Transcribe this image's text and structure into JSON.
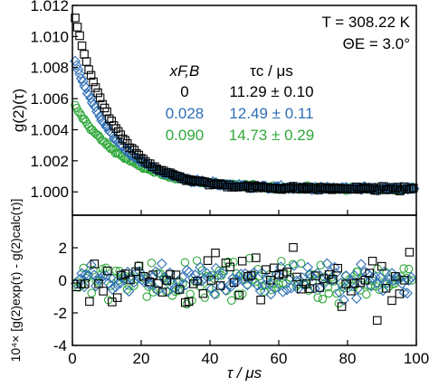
{
  "chart_data": [
    {
      "panel": "top",
      "type": "scatter",
      "ylabel": "g(2)(τ)",
      "xlim": [
        0,
        100
      ],
      "ylim": [
        0.9985,
        1.012
      ],
      "yticks": [
        "1.000",
        "1.002",
        "1.004",
        "1.006",
        "1.008",
        "1.010",
        "1.012"
      ],
      "ytick_values": [
        1.0,
        1.002,
        1.004,
        1.006,
        1.008,
        1.01,
        1.012
      ],
      "annotations": {
        "temperature": "T = 308.22 K",
        "angle": "ΘE = 3.0°",
        "col1_header": "xF,B",
        "col2_header": "τc / μs"
      },
      "legend_rows": [
        {
          "x": "0",
          "tau": "11.29 ± 0.10",
          "color": "#000000"
        },
        {
          "x": "0.028",
          "tau": "12.49 ± 0.11",
          "color": "#2e6fb5"
        },
        {
          "x": "0.090",
          "tau": "14.73 ± 0.29",
          "color": "#2fa83a"
        }
      ],
      "series": [
        {
          "name": "0",
          "marker": "square",
          "color": "#000000",
          "amplitude": 0.0118,
          "tau_c": 11.29
        },
        {
          "name": "0.028",
          "marker": "diamond",
          "color": "#2e6fb5",
          "amplitude": 0.0088,
          "tau_c": 12.49
        },
        {
          "name": "0.090",
          "marker": "circle",
          "color": "#2fa83a",
          "amplitude": 0.0056,
          "tau_c": 14.73
        }
      ],
      "baseline": 1.0002
    },
    {
      "panel": "bottom",
      "type": "scatter",
      "xlabel": "τ / μs",
      "ylabel": "10⁴× [g(2)exp(τ) - g(2)calc(τ)]",
      "xlim": [
        0,
        100
      ],
      "ylim": [
        -4,
        4
      ],
      "xticks": [
        "0",
        "20",
        "40",
        "60",
        "80",
        "100"
      ],
      "xtick_values": [
        0,
        20,
        40,
        60,
        80,
        100
      ],
      "yticks": [
        "-4",
        "-2",
        "0",
        "2"
      ],
      "ytick_values": [
        -4,
        -2,
        0,
        2
      ],
      "series": [
        {
          "name": "0",
          "marker": "square",
          "color": "#000000",
          "spread": 1.1
        },
        {
          "name": "0.028",
          "marker": "diamond",
          "color": "#2e6fb5",
          "spread": 0.7
        },
        {
          "name": "0.090",
          "marker": "circle",
          "color": "#2fa83a",
          "spread": 0.85
        }
      ]
    }
  ]
}
